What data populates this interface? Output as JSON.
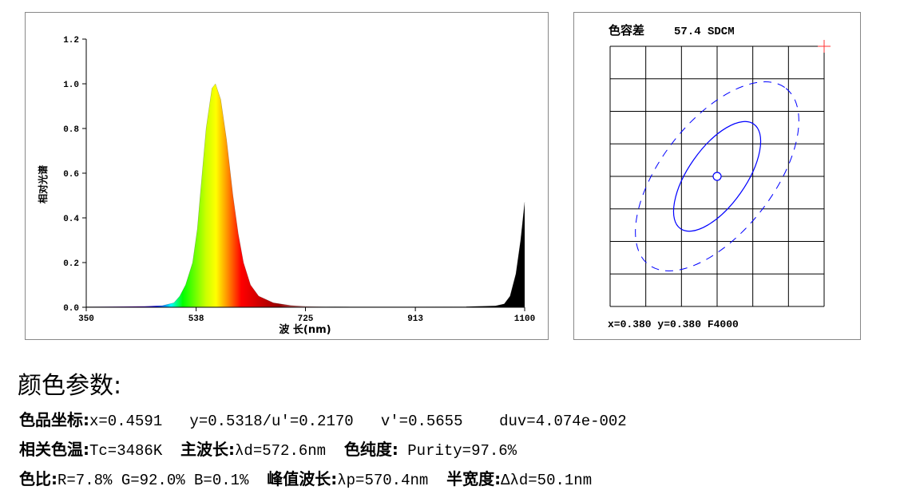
{
  "chart_data": [
    {
      "type": "area",
      "xlabel": "波 长(nm)",
      "ylabel": "相对光谱",
      "xlim": [
        350,
        1100
      ],
      "ylim": [
        0,
        1.2
      ],
      "xticks": [
        "350",
        "538",
        "725",
        "913",
        "1100"
      ],
      "yticks": [
        "0.0",
        "0.2",
        "0.4",
        "0.6",
        "0.8",
        "1.0",
        "1.2"
      ],
      "grid": false,
      "fill": "wavelength color spectrum (visible), black (infrared)",
      "points": [
        [
          350,
          0.003
        ],
        [
          450,
          0.004
        ],
        [
          480,
          0.007
        ],
        [
          500,
          0.02
        ],
        [
          510,
          0.05
        ],
        [
          520,
          0.1
        ],
        [
          532,
          0.2
        ],
        [
          540,
          0.35
        ],
        [
          545,
          0.5
        ],
        [
          555,
          0.8
        ],
        [
          565,
          0.98
        ],
        [
          571,
          1.0
        ],
        [
          580,
          0.93
        ],
        [
          590,
          0.75
        ],
        [
          601,
          0.5
        ],
        [
          610,
          0.33
        ],
        [
          619,
          0.2
        ],
        [
          631,
          0.1
        ],
        [
          645,
          0.05
        ],
        [
          670,
          0.02
        ],
        [
          700,
          0.008
        ],
        [
          725,
          0.004
        ],
        [
          800,
          0.002
        ],
        [
          900,
          0.002
        ],
        [
          1000,
          0.003
        ],
        [
          1050,
          0.006
        ],
        [
          1065,
          0.015
        ],
        [
          1075,
          0.05
        ],
        [
          1085,
          0.15
        ],
        [
          1093,
          0.3
        ],
        [
          1100,
          0.47
        ]
      ]
    },
    {
      "type": "scatter",
      "title": "色容差",
      "sdcm_value": "57.4 SDCM",
      "grid": true,
      "grid_cols": 6,
      "grid_rows": 8,
      "center_label": "x=0.380 y=0.380 F4000",
      "ellipse_color": "#0000ff",
      "marker_color": "#ff0000"
    }
  ],
  "params": {
    "heading": "颜色参数:",
    "rows": [
      [
        {
          "cn": "色品坐标:",
          "v": "x=0.4591   y=0.5318/u'=0.2170   v'=0.5655    duv=4.074e-002"
        }
      ],
      [
        {
          "cn": "相关色温:",
          "v": "Tc=3486K  "
        },
        {
          "cn": "主波长:",
          "v": "λd=572.6nm  "
        },
        {
          "cn": "色纯度:",
          "v": " Purity=97.6%"
        }
      ],
      [
        {
          "cn": "色比:",
          "v": "R=7.8% G=92.0% B=0.1%  "
        },
        {
          "cn": "峰值波长:",
          "v": "λp=570.4nm  "
        },
        {
          "cn": "半宽度:",
          "v": "Δλd=50.1nm"
        }
      ]
    ]
  }
}
